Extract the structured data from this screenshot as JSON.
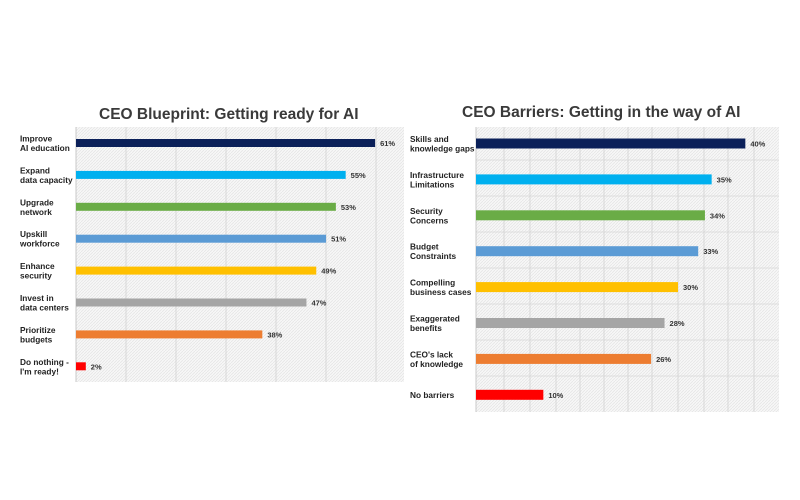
{
  "chart_data": [
    {
      "type": "bar",
      "orientation": "horizontal",
      "title": "CEO Blueprint: Getting ready for AI",
      "categories": [
        [
          "Improve",
          "AI education"
        ],
        [
          "Expand",
          "data capacity"
        ],
        [
          "Upgrade",
          "network"
        ],
        [
          "Upskill",
          "workforce"
        ],
        [
          "Enhance",
          "security"
        ],
        [
          "Invest in",
          "data centers"
        ],
        [
          "Prioritize",
          "budgets"
        ],
        [
          "Do nothing -",
          "I'm ready!"
        ]
      ],
      "values": [
        61,
        55,
        53,
        51,
        49,
        47,
        38,
        2
      ],
      "value_labels": [
        "61%",
        "55%",
        "53%",
        "51%",
        "49%",
        "47%",
        "38%",
        "2%"
      ],
      "colors": [
        "#0b2059",
        "#00b0ef",
        "#6aac46",
        "#5b9bd5",
        "#ffc000",
        "#a5a5a5",
        "#ed7d31",
        "#ff0000"
      ],
      "xlim": [
        0,
        62
      ],
      "grid": true,
      "xlabel": "",
      "ylabel": ""
    },
    {
      "type": "bar",
      "orientation": "horizontal",
      "title": "CEO Barriers: Getting in the way of AI",
      "categories": [
        [
          "Skills and",
          "knowledge gaps"
        ],
        [
          "Infrastructure",
          "Limitations"
        ],
        [
          "Security",
          "Concerns"
        ],
        [
          "Budget",
          "Constraints"
        ],
        [
          "Compelling",
          "business cases"
        ],
        [
          "Exaggerated",
          "benefits"
        ],
        [
          "CEO's lack",
          "of knowledge"
        ],
        [
          "No barriers"
        ]
      ],
      "values": [
        40,
        35,
        34,
        33,
        30,
        28,
        26,
        10
      ],
      "value_labels": [
        "40%",
        "35%",
        "34%",
        "33%",
        "30%",
        "28%",
        "26%",
        "10%"
      ],
      "colors": [
        "#0b2059",
        "#00b0ef",
        "#6aac46",
        "#5b9bd5",
        "#ffc000",
        "#a5a5a5",
        "#ed7d31",
        "#ff0000"
      ],
      "xlim": [
        0,
        45
      ],
      "grid": true,
      "xlabel": "",
      "ylabel": ""
    }
  ]
}
